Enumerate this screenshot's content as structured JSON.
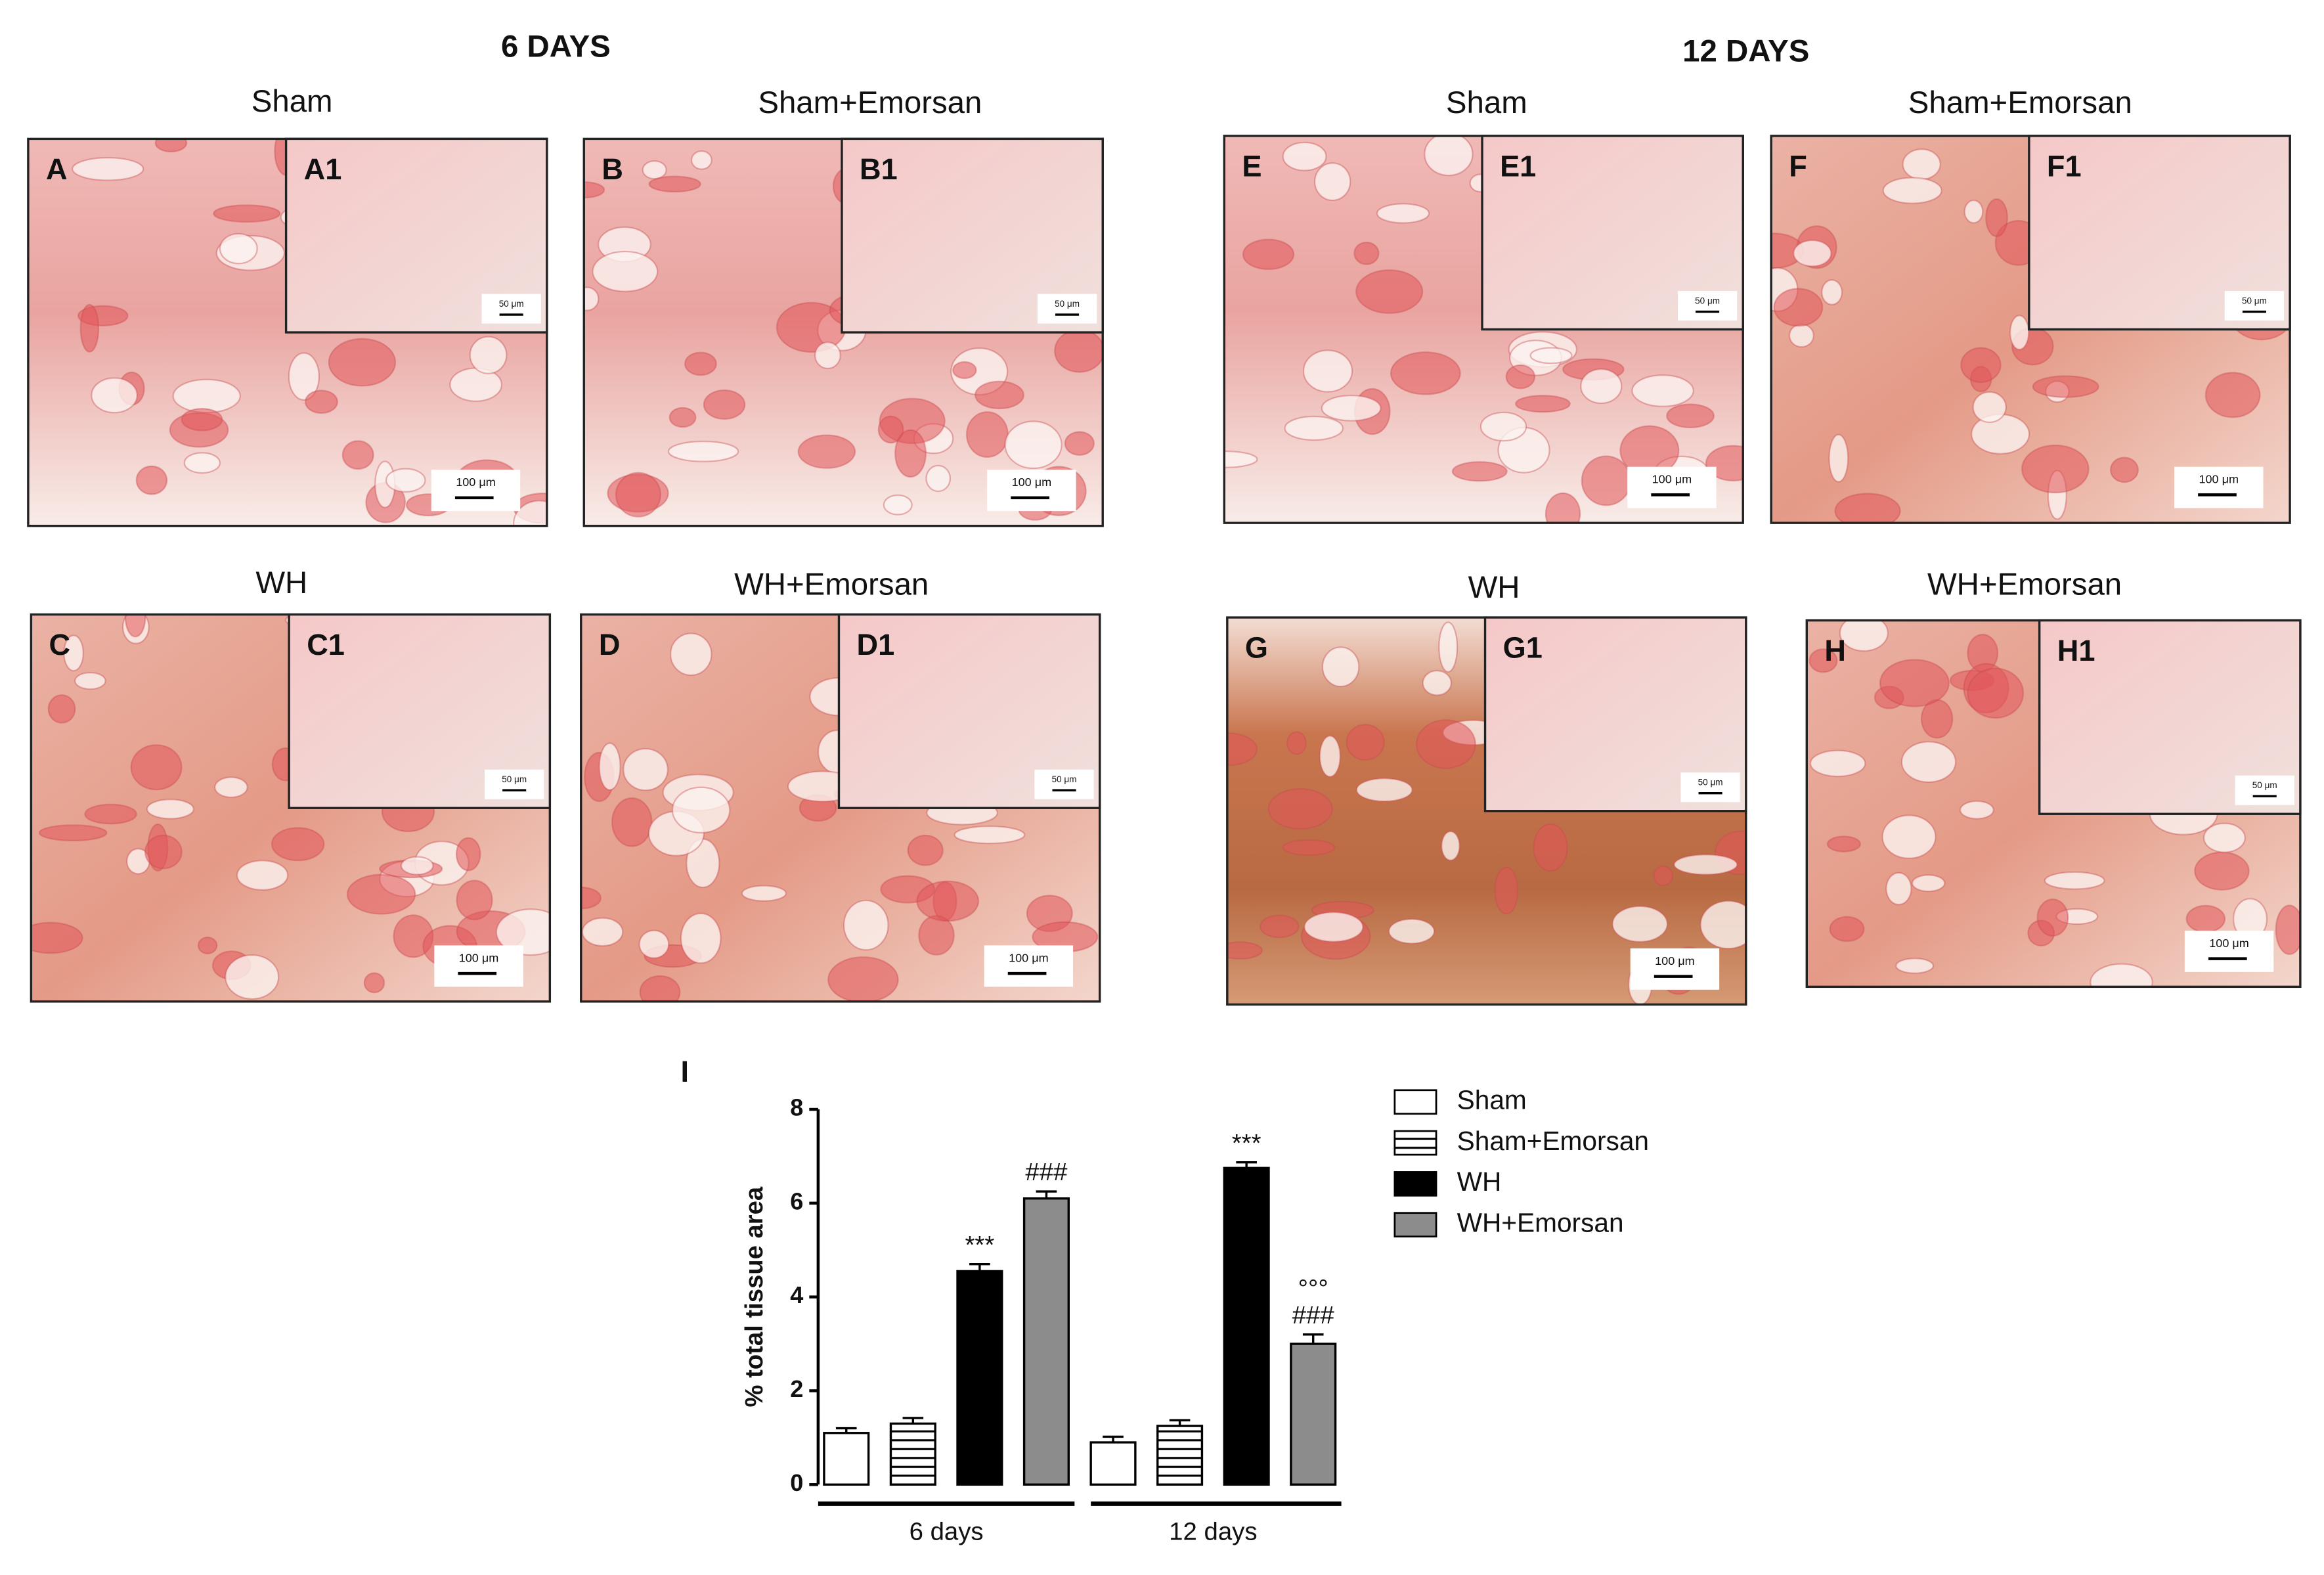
{
  "figure": {
    "headings": [
      "6 DAYS",
      "12 DAYS"
    ],
    "panels": [
      {
        "title": "Sham",
        "label": "A",
        "inset_label": "A1",
        "scale": "100 μm",
        "inset_scale": "50 μm"
      },
      {
        "title": "Sham+Emorsan",
        "label": "B",
        "inset_label": "B1",
        "scale": "100 μm",
        "inset_scale": "50 μm"
      },
      {
        "title": "Sham",
        "label": "E",
        "inset_label": "E1",
        "scale": "100 μm",
        "inset_scale": "50 μm"
      },
      {
        "title": "Sham+Emorsan",
        "label": "F",
        "inset_label": "F1",
        "scale": "100 μm",
        "inset_scale": "50 μm"
      },
      {
        "title": "WH",
        "label": "C",
        "inset_label": "C1",
        "scale": "100 μm",
        "inset_scale": "50 μm"
      },
      {
        "title": "WH+Emorsan",
        "label": "D",
        "inset_label": "D1",
        "scale": "100 μm",
        "inset_scale": "50 μm"
      },
      {
        "title": "WH",
        "label": "G",
        "inset_label": "G1",
        "scale": "100 μm",
        "inset_scale": "50 μm"
      },
      {
        "title": "WH+Emorsan",
        "label": "H",
        "inset_label": "H1",
        "scale": "100 μm",
        "inset_scale": "50 μm"
      }
    ]
  },
  "chart_data": {
    "type": "bar",
    "panel_label": "I",
    "y_label": "% total tissue area",
    "categories": [
      "6 days",
      "12 days"
    ],
    "ylim": [
      0,
      8
    ],
    "yticks": [
      0,
      2,
      4,
      6,
      8
    ],
    "series": [
      {
        "name": "Sham",
        "color": "#ffffff",
        "values": [
          1.1,
          0.9
        ],
        "errors": [
          0.1,
          0.12
        ]
      },
      {
        "name": "Sham+Emorsan",
        "color": "#ffffff",
        "pattern": "horizontal-lines",
        "values": [
          1.3,
          1.25
        ],
        "errors": [
          0.12,
          0.12
        ]
      },
      {
        "name": "WH",
        "color": "#000000",
        "values": [
          4.55,
          6.75
        ],
        "errors": [
          0.15,
          0.12
        ],
        "annotations": [
          [
            "***"
          ],
          [
            "***"
          ]
        ]
      },
      {
        "name": "WH+Emorsan",
        "color": "#8c8c8c",
        "values": [
          6.1,
          3.0
        ],
        "errors": [
          0.15,
          0.2
        ],
        "annotations": [
          [
            "###"
          ],
          [
            "°°°",
            "###"
          ]
        ]
      }
    ]
  }
}
